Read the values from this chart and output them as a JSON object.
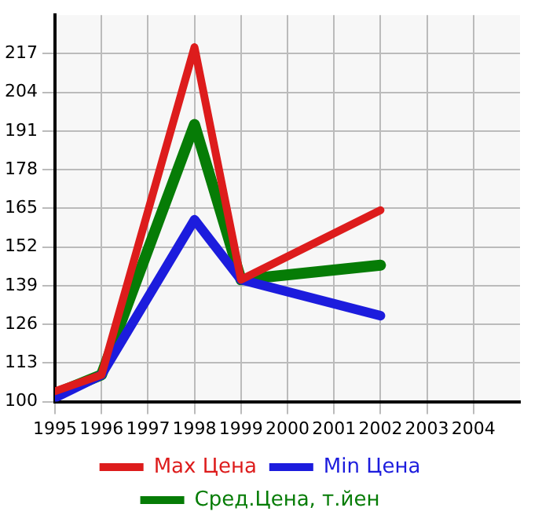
{
  "chart_data": {
    "type": "line",
    "x": [
      1995,
      1996,
      1998,
      1999,
      2002
    ],
    "series": [
      {
        "name": "Max Цена",
        "color": "#dd1c1c",
        "values": [
          103.5,
          109,
          219.2,
          141,
          164.4
        ]
      },
      {
        "name": "Min Цена",
        "color": "#1c1cdd",
        "values": [
          101.3,
          109,
          161.2,
          141,
          128.9
        ]
      },
      {
        "name": "Сред.Цена, т.йен",
        "color": "#067c06",
        "values": [
          102.6,
          109,
          193.2,
          141,
          145.9
        ]
      }
    ],
    "xlim": [
      1995,
      2005
    ],
    "xticks": [
      1995,
      1996,
      1997,
      1998,
      1999,
      2000,
      2001,
      2002,
      2003,
      2004
    ],
    "ylim": [
      100,
      230
    ],
    "yticks": [
      100,
      113,
      126,
      139,
      152,
      165,
      178,
      191,
      204,
      217
    ],
    "grid": true,
    "legend": "bottom",
    "marker": "none",
    "line_style": "solid"
  }
}
